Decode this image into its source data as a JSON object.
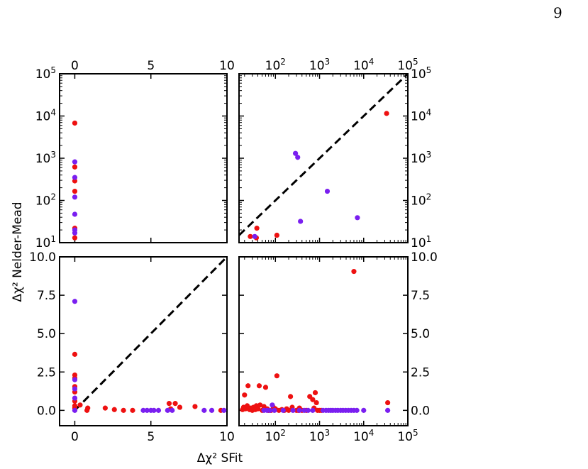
{
  "page_number": "9",
  "colors": {
    "red": "#ee1111",
    "purple": "#7a1ff0",
    "diagonal": "#000000"
  },
  "chart_data": {
    "type": "scatter",
    "xlabel": "Δχ² SFit",
    "ylabel": "Δχ² Nelder-Mead",
    "panels": [
      {
        "id": "top-left",
        "xscale": "linear",
        "xlim": [
          -1,
          10
        ],
        "yscale": "log",
        "ylim": [
          10,
          100000
        ],
        "x_tick_labels": [
          "0",
          "5",
          "10"
        ],
        "x_tick_values": [
          0,
          5,
          10
        ],
        "x_tick_labels_position": "top",
        "y_tick_labels": [
          "10^5",
          "10^4",
          "10^3",
          "10^2",
          "10^1"
        ],
        "y_tick_values": [
          100000,
          10000,
          1000,
          100,
          10
        ],
        "y_tick_labels_position": "left",
        "diagonal": false,
        "series": [
          {
            "color_key": "red",
            "points": [
              [
                0,
                6800
              ],
              [
                0,
                620
              ],
              [
                0,
                290
              ],
              [
                0,
                165
              ],
              [
                0,
                22
              ],
              [
                0,
                13
              ]
            ]
          },
          {
            "color_key": "purple",
            "points": [
              [
                0,
                820
              ],
              [
                0,
                350
              ],
              [
                0,
                120
              ],
              [
                0,
                47
              ],
              [
                0,
                20
              ],
              [
                0,
                17
              ]
            ]
          }
        ]
      },
      {
        "id": "top-right",
        "xscale": "log",
        "xlim": [
          15,
          100000
        ],
        "yscale": "log",
        "ylim": [
          10,
          100000
        ],
        "x_tick_labels": [
          "10^2",
          "10^3",
          "10^4",
          "10^5"
        ],
        "x_tick_values": [
          100,
          1000,
          10000,
          100000
        ],
        "x_tick_labels_position": "top",
        "y_tick_labels": [
          "10^5",
          "10^4",
          "10^3",
          "10^2",
          "10^1"
        ],
        "y_tick_values": [
          100000,
          10000,
          1000,
          100,
          10
        ],
        "y_tick_labels_position": "right",
        "diagonal": true,
        "series": [
          {
            "color_key": "red",
            "points": [
              [
                27,
                14
              ],
              [
                37,
                13
              ],
              [
                38,
                22
              ],
              [
                108,
                15
              ],
              [
                33000,
                11500
              ]
            ]
          },
          {
            "color_key": "purple",
            "points": [
              [
                34,
                14
              ],
              [
                285,
                1300
              ],
              [
                320,
                1050
              ],
              [
                370,
                32
              ],
              [
                1500,
                165
              ],
              [
                7200,
                39
              ]
            ]
          }
        ]
      },
      {
        "id": "bottom-left",
        "xscale": "linear",
        "xlim": [
          -1,
          10
        ],
        "yscale": "linear",
        "ylim": [
          -1,
          10
        ],
        "x_tick_labels": [
          "0",
          "5",
          "10"
        ],
        "x_tick_values": [
          0,
          5,
          10
        ],
        "x_tick_labels_position": "bottom",
        "y_tick_labels": [
          "10.0",
          "7.5",
          "5.0",
          "2.5",
          "0.0"
        ],
        "y_tick_values": [
          10,
          7.5,
          5,
          2.5,
          0
        ],
        "y_tick_labels_position": "left",
        "diagonal": true,
        "series": [
          {
            "color_key": "red",
            "points": [
              [
                0,
                3.65
              ],
              [
                0,
                2.3
              ],
              [
                0,
                2.1
              ],
              [
                0,
                1.55
              ],
              [
                0,
                1.2
              ],
              [
                0,
                0.6
              ],
              [
                0,
                0.3
              ],
              [
                0,
                0.15
              ],
              [
                0.35,
                0.35
              ],
              [
                0.8,
                0.0
              ],
              [
                0.85,
                0.15
              ],
              [
                2.0,
                0.15
              ],
              [
                2.6,
                0.05
              ],
              [
                3.2,
                0.0
              ],
              [
                3.8,
                0.0
              ],
              [
                6.2,
                0.45
              ],
              [
                6.3,
                0.1
              ],
              [
                6.6,
                0.45
              ],
              [
                6.9,
                0.2
              ],
              [
                7.9,
                0.25
              ],
              [
                9.6,
                0.0
              ]
            ]
          },
          {
            "color_key": "purple",
            "points": [
              [
                0,
                7.1
              ],
              [
                0,
                2.0
              ],
              [
                0,
                1.4
              ],
              [
                0,
                0.8
              ],
              [
                0,
                0.0
              ],
              [
                4.5,
                0.0
              ],
              [
                4.75,
                0.0
              ],
              [
                5.0,
                0.0
              ],
              [
                5.2,
                0.0
              ],
              [
                5.5,
                0.0
              ],
              [
                6.1,
                0.0
              ],
              [
                6.4,
                0.0
              ],
              [
                8.5,
                0.0
              ],
              [
                9.0,
                0.0
              ],
              [
                9.8,
                0.0
              ]
            ]
          }
        ]
      },
      {
        "id": "bottom-right",
        "xscale": "log",
        "xlim": [
          15,
          100000
        ],
        "yscale": "linear",
        "ylim": [
          -1,
          10
        ],
        "x_tick_labels": [
          "10^2",
          "10^3",
          "10^4",
          "10^5"
        ],
        "x_tick_values": [
          100,
          1000,
          10000,
          100000
        ],
        "x_tick_labels_position": "bottom",
        "y_tick_labels": [
          "10.0",
          "7.5",
          "5.0",
          "2.5",
          "0.0"
        ],
        "y_tick_values": [
          10,
          7.5,
          5,
          2.5,
          0
        ],
        "y_tick_labels_position": "right",
        "diagonal": false,
        "series": [
          {
            "color_key": "red",
            "points": [
              [
                18,
                0.05
              ],
              [
                19,
                0.2
              ],
              [
                20,
                1.0
              ],
              [
                21,
                0.1
              ],
              [
                23,
                0.3
              ],
              [
                24,
                1.6
              ],
              [
                26,
                0.05
              ],
              [
                28,
                0.15
              ],
              [
                30,
                0.0
              ],
              [
                32,
                0.2
              ],
              [
                35,
                0.05
              ],
              [
                37,
                0.3
              ],
              [
                40,
                0.1
              ],
              [
                43,
                1.6
              ],
              [
                45,
                0.35
              ],
              [
                50,
                0.0
              ],
              [
                55,
                0.25
              ],
              [
                60,
                1.5
              ],
              [
                65,
                0.1
              ],
              [
                70,
                0.0
              ],
              [
                80,
                0.0
              ],
              [
                90,
                0.2
              ],
              [
                100,
                0.1
              ],
              [
                108,
                2.25
              ],
              [
                120,
                0.0
              ],
              [
                140,
                0.05
              ],
              [
                160,
                0.0
              ],
              [
                180,
                0.1
              ],
              [
                200,
                0.0
              ],
              [
                220,
                0.9
              ],
              [
                240,
                0.2
              ],
              [
                300,
                0.0
              ],
              [
                330,
                0.0
              ],
              [
                350,
                0.15
              ],
              [
                400,
                0.0
              ],
              [
                500,
                0.0
              ],
              [
                600,
                0.9
              ],
              [
                700,
                0.7
              ],
              [
                750,
                0.15
              ],
              [
                800,
                1.15
              ],
              [
                850,
                0.5
              ],
              [
                900,
                0.0
              ],
              [
                1000,
                0.0
              ],
              [
                1100,
                0.0
              ],
              [
                6000,
                9.05
              ],
              [
                35000,
                0.5
              ]
            ]
          },
          {
            "color_key": "purple",
            "points": [
              [
                55,
                0.0
              ],
              [
                65,
                0.0
              ],
              [
                75,
                0.0
              ],
              [
                85,
                0.35
              ],
              [
                95,
                0.0
              ],
              [
                150,
                0.0
              ],
              [
                250,
                0.0
              ],
              [
                350,
                0.0
              ],
              [
                450,
                0.0
              ],
              [
                550,
                0.0
              ],
              [
                700,
                0.0
              ],
              [
                1200,
                0.0
              ],
              [
                1400,
                0.0
              ],
              [
                1600,
                0.0
              ],
              [
                1800,
                0.0
              ],
              [
                2000,
                0.0
              ],
              [
                2300,
                0.0
              ],
              [
                2600,
                0.0
              ],
              [
                3000,
                0.0
              ],
              [
                3400,
                0.0
              ],
              [
                3900,
                0.0
              ],
              [
                4500,
                0.0
              ],
              [
                5200,
                0.0
              ],
              [
                6000,
                0.0
              ],
              [
                7000,
                0.0
              ],
              [
                10000,
                0.0
              ],
              [
                35000,
                0.0
              ]
            ]
          }
        ]
      }
    ]
  }
}
